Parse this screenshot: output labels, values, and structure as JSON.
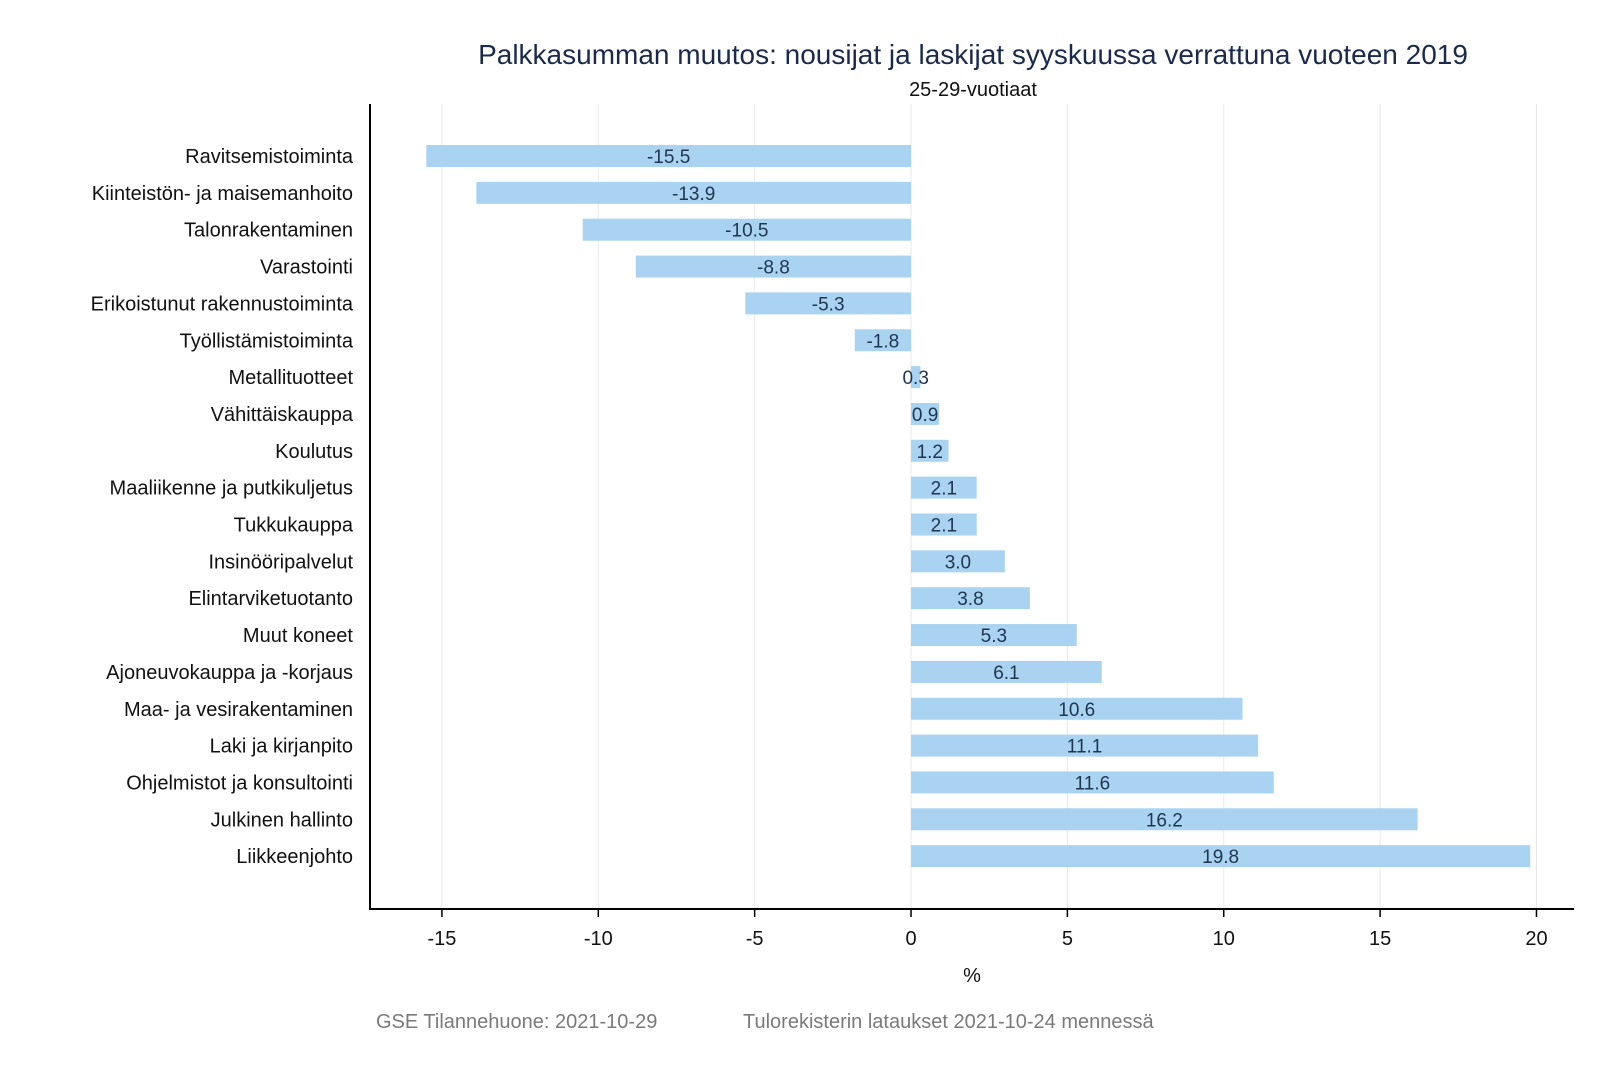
{
  "chart_data": {
    "type": "bar",
    "orientation": "horizontal",
    "title": "Palkkasumman muutos: nousijat ja laskijat syyskuussa verrattuna vuoteen 2019",
    "subtitle": "25-29-vuotiaat",
    "xlabel": "%",
    "ylabel": "",
    "xlim": [
      -17.3,
      21.2
    ],
    "xticks": [
      -15,
      -10,
      -5,
      0,
      5,
      10,
      15,
      20
    ],
    "xtick_labels": [
      "-15",
      "-10",
      "-5",
      "0",
      "5",
      "10",
      "15",
      "20"
    ],
    "grid": true,
    "bar_color": "#a9d3f1",
    "categories": [
      "Ravitsemistoiminta",
      "Kiinteistön- ja maisemanhoito",
      "Talonrakentaminen",
      "Varastointi",
      "Erikoistunut rakennustoiminta",
      "Työllistämistoiminta",
      "Metallituotteet",
      "Vähittäiskauppa",
      "Koulutus",
      "Maaliikenne ja putkikuljetus",
      "Tukkukauppa",
      "Insinööripalvelut",
      "Elintarviketuotanto",
      "Muut koneet",
      "Ajoneuvokauppa ja -korjaus",
      "Maa- ja vesirakentaminen",
      "Laki ja kirjanpito",
      "Ohjelmistot ja konsultointi",
      "Julkinen hallinto",
      "Liikkeenjohto"
    ],
    "values": [
      -15.5,
      -13.9,
      -10.5,
      -8.8,
      -5.3,
      -1.8,
      0.3,
      0.9,
      1.2,
      2.1,
      2.1,
      3.0,
      3.8,
      5.3,
      6.1,
      10.6,
      11.1,
      11.6,
      16.2,
      19.8
    ],
    "value_labels": [
      "-15.5",
      "-13.9",
      "-10.5",
      "-8.8",
      "-5.3",
      "-1.8",
      "0.3",
      "0.9",
      "1.2",
      "2.1",
      "2.1",
      "3.0",
      "3.8",
      "5.3",
      "6.1",
      "10.6",
      "11.1",
      "11.6",
      "16.2",
      "19.8"
    ]
  },
  "footer": {
    "source": "GSE Tilannehuone: 2021-10-29",
    "note": "Tulorekisterin lataukset 2021-10-24 mennessä"
  }
}
